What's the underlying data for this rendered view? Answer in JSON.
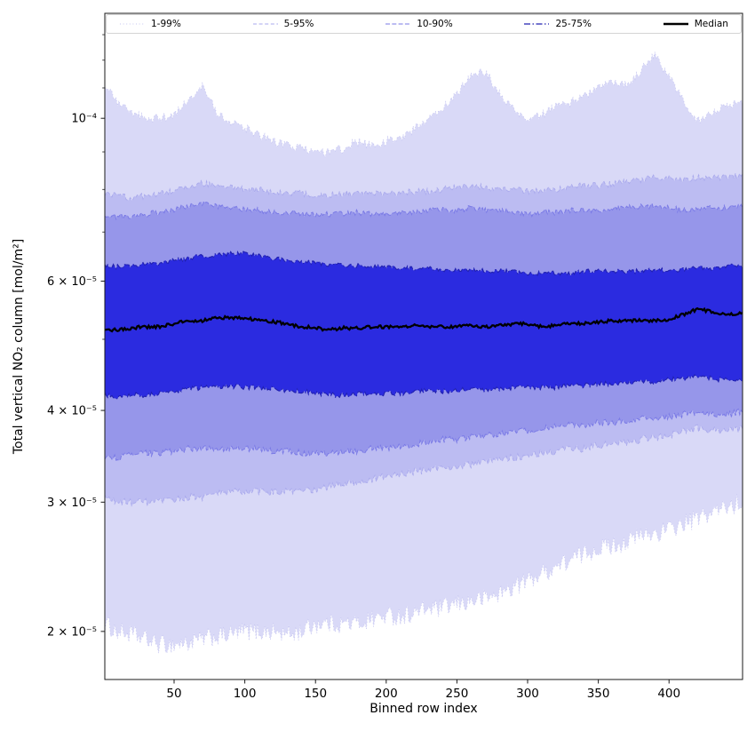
{
  "figure": {
    "background": "#ffffff"
  },
  "legend": {
    "items": [
      {
        "label": "1-99%",
        "color": "#c6c6f1",
        "dash": "1,2.6",
        "width": 1
      },
      {
        "label": "5-95%",
        "color": "#a9a9ec",
        "dash": "4,2.6",
        "width": 1
      },
      {
        "label": "10-90%",
        "color": "#7a7ae6",
        "dash": "5,2.3",
        "width": 1.1
      },
      {
        "label": "25-75%",
        "color": "#2121b0",
        "dash": "7,2.5,1.5,2.5",
        "width": 1.2
      },
      {
        "label": "Median",
        "color": "#000000",
        "dash": "",
        "width": 2.5
      }
    ]
  },
  "chart_data": {
    "type": "band",
    "title": "",
    "xlabel": "Binned row index",
    "ylabel": "Total vertical NO₂ column [mol/m²]",
    "x_axis": {
      "min": 1,
      "max": 452,
      "ticks": [
        50,
        100,
        150,
        200,
        250,
        300,
        350,
        400
      ]
    },
    "y_axis": {
      "scale": "log",
      "min": 1.72e-05,
      "max": 0.000139,
      "ticks": [
        {
          "value": 0.0001,
          "label": "10⁻⁴"
        },
        {
          "value": 6e-05,
          "label": "6 × 10⁻⁵"
        },
        {
          "value": 4e-05,
          "label": "4 × 10⁻⁵"
        },
        {
          "value": 3e-05,
          "label": "3 × 10⁻⁵"
        },
        {
          "value": 2e-05,
          "label": "2 × 10⁻⁵"
        }
      ],
      "minor_ticks": [
        5e-05,
        7e-05,
        8e-05,
        9e-05,
        0.00011,
        0.00012,
        0.00013
      ]
    },
    "value_scale": 1e-05,
    "control_x": [
      0,
      10,
      20,
      30,
      40,
      50,
      60,
      70,
      80,
      90,
      100,
      110,
      120,
      130,
      140,
      150,
      160,
      170,
      180,
      190,
      200,
      210,
      220,
      230,
      240,
      250,
      260,
      270,
      280,
      290,
      300,
      310,
      320,
      330,
      340,
      350,
      360,
      370,
      380,
      390,
      400,
      410,
      420,
      430,
      440,
      450
    ],
    "percentiles": {
      "p1": {
        "values": [
          2.05,
          2.0,
          1.98,
          1.95,
          1.92,
          1.92,
          1.93,
          1.95,
          1.97,
          1.98,
          2.0,
          2.0,
          2.0,
          1.98,
          2.0,
          2.05,
          2.05,
          2.05,
          2.05,
          2.08,
          2.1,
          2.1,
          2.12,
          2.15,
          2.15,
          2.18,
          2.2,
          2.22,
          2.25,
          2.3,
          2.35,
          2.4,
          2.45,
          2.5,
          2.55,
          2.6,
          2.62,
          2.65,
          2.7,
          2.72,
          2.75,
          2.8,
          2.85,
          2.9,
          2.95,
          3.0
        ],
        "noise": 0.03
      },
      "p5": {
        "values": [
          3.05,
          3.0,
          3.0,
          3.0,
          3.0,
          3.02,
          3.05,
          3.05,
          3.08,
          3.1,
          3.1,
          3.1,
          3.1,
          3.1,
          3.1,
          3.12,
          3.15,
          3.18,
          3.2,
          3.22,
          3.25,
          3.28,
          3.3,
          3.32,
          3.35,
          3.35,
          3.38,
          3.4,
          3.42,
          3.45,
          3.48,
          3.5,
          3.52,
          3.55,
          3.55,
          3.58,
          3.6,
          3.62,
          3.65,
          3.68,
          3.7,
          3.75,
          3.78,
          3.75,
          3.75,
          3.78
        ],
        "noise": 0.012
      },
      "p10": {
        "values": [
          3.45,
          3.45,
          3.48,
          3.5,
          3.5,
          3.52,
          3.55,
          3.55,
          3.55,
          3.55,
          3.55,
          3.55,
          3.52,
          3.52,
          3.5,
          3.5,
          3.5,
          3.52,
          3.52,
          3.55,
          3.55,
          3.58,
          3.6,
          3.62,
          3.65,
          3.65,
          3.68,
          3.7,
          3.72,
          3.75,
          3.75,
          3.78,
          3.8,
          3.82,
          3.82,
          3.85,
          3.85,
          3.88,
          3.9,
          3.9,
          3.92,
          3.95,
          3.98,
          3.95,
          3.95,
          3.98
        ],
        "noise": 0.01
      },
      "p25": {
        "values": [
          4.2,
          4.18,
          4.2,
          4.2,
          4.22,
          4.25,
          4.28,
          4.3,
          4.3,
          4.32,
          4.3,
          4.3,
          4.28,
          4.25,
          4.25,
          4.22,
          4.2,
          4.2,
          4.22,
          4.22,
          4.22,
          4.22,
          4.25,
          4.25,
          4.25,
          4.25,
          4.28,
          4.25,
          4.28,
          4.3,
          4.3,
          4.3,
          4.3,
          4.32,
          4.32,
          4.35,
          4.35,
          4.35,
          4.38,
          4.38,
          4.4,
          4.42,
          4.45,
          4.42,
          4.4,
          4.42
        ],
        "noise": 0.008
      },
      "median": {
        "values": [
          5.15,
          5.15,
          5.18,
          5.2,
          5.2,
          5.25,
          5.3,
          5.3,
          5.35,
          5.35,
          5.35,
          5.3,
          5.28,
          5.25,
          5.2,
          5.18,
          5.15,
          5.18,
          5.18,
          5.2,
          5.2,
          5.2,
          5.22,
          5.2,
          5.2,
          5.2,
          5.22,
          5.2,
          5.22,
          5.25,
          5.25,
          5.2,
          5.22,
          5.25,
          5.25,
          5.28,
          5.3,
          5.3,
          5.3,
          5.3,
          5.32,
          5.4,
          5.5,
          5.45,
          5.4,
          5.42
        ],
        "noise": 0.005
      },
      "p75": {
        "values": [
          6.3,
          6.28,
          6.3,
          6.32,
          6.35,
          6.4,
          6.45,
          6.5,
          6.5,
          6.55,
          6.55,
          6.5,
          6.45,
          6.4,
          6.38,
          6.35,
          6.32,
          6.3,
          6.3,
          6.28,
          6.28,
          6.25,
          6.25,
          6.25,
          6.22,
          6.2,
          6.22,
          6.2,
          6.2,
          6.18,
          6.15,
          6.15,
          6.15,
          6.15,
          6.18,
          6.2,
          6.2,
          6.18,
          6.2,
          6.22,
          6.2,
          6.22,
          6.25,
          6.25,
          6.28,
          6.3
        ],
        "noise": 0.007
      },
      "p90": {
        "values": [
          7.4,
          7.35,
          7.35,
          7.4,
          7.45,
          7.5,
          7.6,
          7.65,
          7.6,
          7.55,
          7.5,
          7.5,
          7.45,
          7.45,
          7.4,
          7.4,
          7.4,
          7.4,
          7.45,
          7.4,
          7.4,
          7.45,
          7.45,
          7.5,
          7.5,
          7.5,
          7.55,
          7.5,
          7.5,
          7.45,
          7.4,
          7.45,
          7.45,
          7.5,
          7.5,
          7.5,
          7.55,
          7.55,
          7.6,
          7.6,
          7.55,
          7.5,
          7.5,
          7.55,
          7.55,
          7.6
        ],
        "noise": 0.009
      },
      "p95": {
        "values": [
          7.9,
          7.85,
          7.8,
          7.85,
          7.9,
          7.95,
          8.1,
          8.15,
          8.1,
          8.05,
          8.0,
          8.0,
          7.95,
          7.9,
          7.9,
          7.85,
          7.85,
          7.9,
          7.9,
          7.9,
          7.9,
          7.9,
          7.95,
          7.95,
          8.0,
          8.05,
          8.1,
          8.05,
          8.0,
          8.0,
          7.95,
          8.0,
          8.0,
          8.05,
          8.1,
          8.1,
          8.15,
          8.2,
          8.25,
          8.3,
          8.3,
          8.25,
          8.3,
          8.3,
          8.3,
          8.35
        ],
        "noise": 0.01
      },
      "p99": {
        "values": [
          11.2,
          10.5,
          10.2,
          10.0,
          10.0,
          10.1,
          10.6,
          11.1,
          10.2,
          9.9,
          9.7,
          9.5,
          9.3,
          9.2,
          9.1,
          9.0,
          9.0,
          9.1,
          9.3,
          9.2,
          9.3,
          9.4,
          9.7,
          10.0,
          10.3,
          10.8,
          11.4,
          11.6,
          10.8,
          10.3,
          10.0,
          10.1,
          10.4,
          10.5,
          10.7,
          11.0,
          11.2,
          11.1,
          11.6,
          12.2,
          11.4,
          10.6,
          9.9,
          10.2,
          10.4,
          10.5
        ],
        "noise": 0.014
      }
    },
    "bands": [
      {
        "name": "1-99%",
        "lower": "p1",
        "upper": "p99",
        "fill": "#d9d9f7",
        "edge": "#c6c6f1",
        "dash": "1,2.6",
        "edge_width": 0.9
      },
      {
        "name": "5-95%",
        "lower": "p5",
        "upper": "p95",
        "fill": "#bcbcf2",
        "edge": "#a9a9ec",
        "dash": "4,2.6",
        "edge_width": 0.9
      },
      {
        "name": "10-90%",
        "lower": "p10",
        "upper": "p90",
        "fill": "#9696ea",
        "edge": "#7a7ae6",
        "dash": "5,2.3",
        "edge_width": 1
      },
      {
        "name": "25-75%",
        "lower": "p25",
        "upper": "p75",
        "fill": "#2b2be0",
        "edge": "#2121b0",
        "dash": "7,2.5,1.5,2.5",
        "edge_width": 1.1
      }
    ],
    "median_line": {
      "key": "median",
      "label": "Median",
      "color": "#000000",
      "width": 2.3
    }
  }
}
